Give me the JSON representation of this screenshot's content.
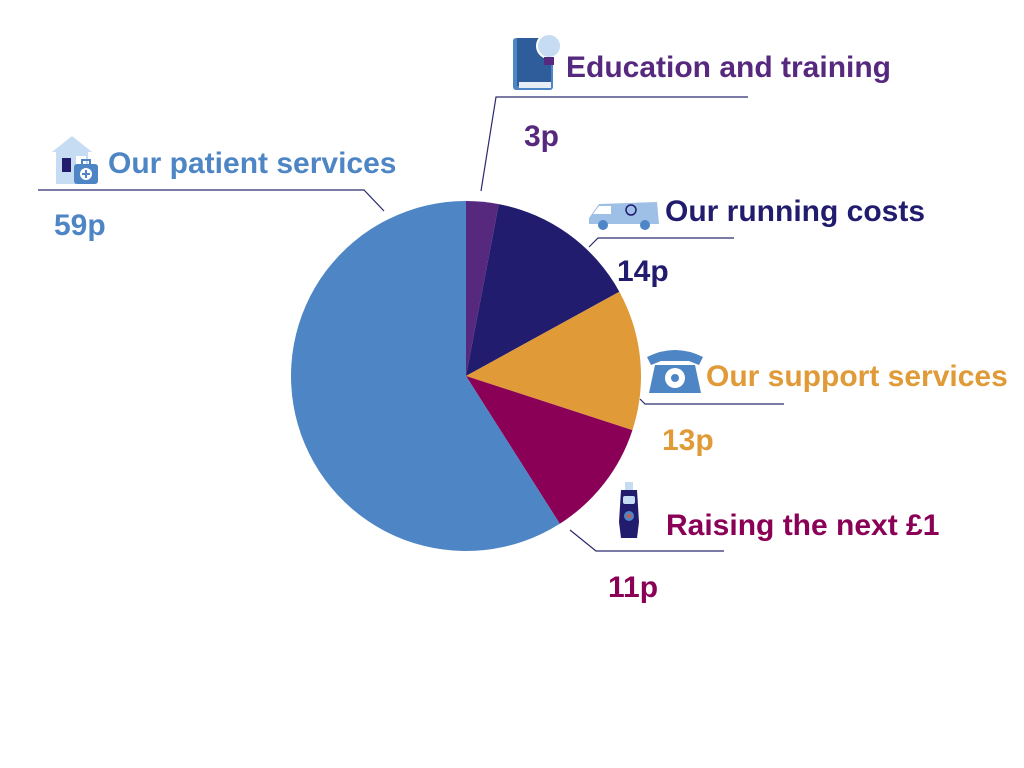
{
  "chart_data": {
    "type": "pie",
    "unit": "p",
    "slices": [
      {
        "label": "Education and training",
        "value": 3,
        "value_label": "3p",
        "color": "#56297e",
        "icon": "lightbulb-book-icon"
      },
      {
        "label": "Our running costs",
        "value": 14,
        "value_label": "14p",
        "color": "#221c6e",
        "icon": "van-icon"
      },
      {
        "label": "Our support services",
        "value": 13,
        "value_label": "13p",
        "color": "#e09a37",
        "icon": "telephone-icon"
      },
      {
        "label": "Raising the next £1",
        "value": 11,
        "value_label": "11p",
        "color": "#8b0057",
        "icon": "collection-tin-icon"
      },
      {
        "label": "Our patient services",
        "value": 59,
        "value_label": "59p",
        "color": "#4d85c5",
        "icon": "house-first-aid-icon"
      }
    ]
  }
}
